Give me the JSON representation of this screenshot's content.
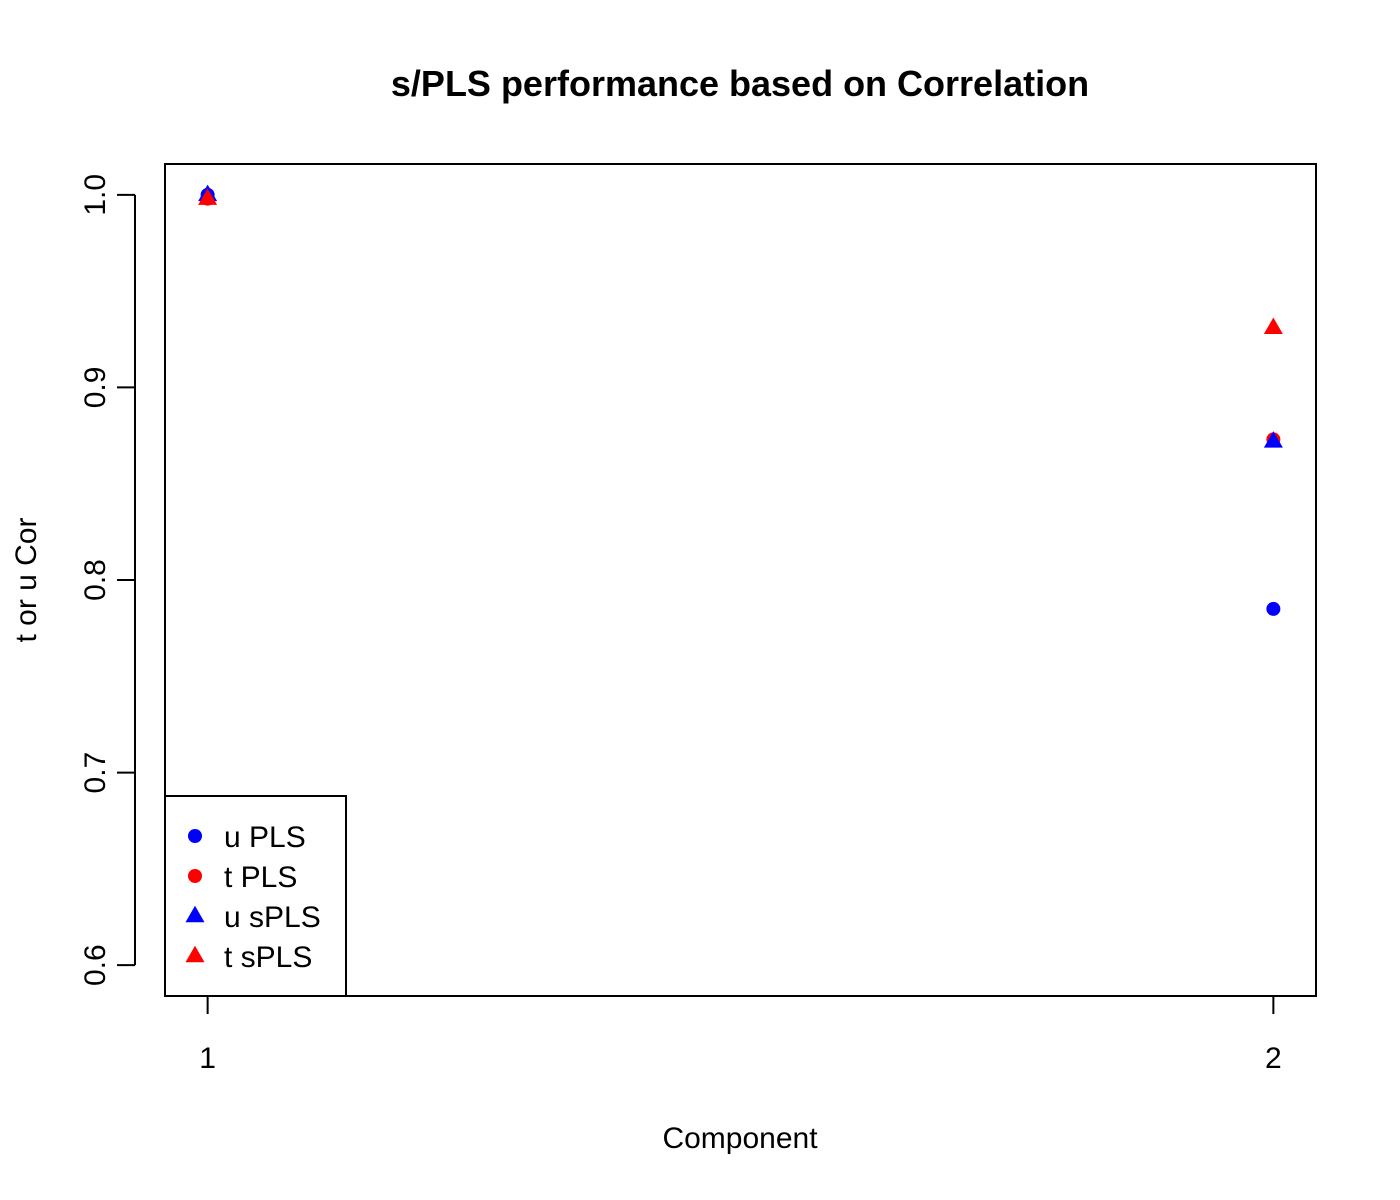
{
  "chart_data": {
    "type": "scatter",
    "title": "s/PLS performance based on Correlation",
    "xlabel": "Component",
    "ylabel": "t or u Cor",
    "x": [
      1,
      2
    ],
    "xticks": [
      1,
      2
    ],
    "xtick_labels": [
      "1",
      "2"
    ],
    "yticks": [
      0.6,
      0.7,
      0.8,
      0.9,
      1.0
    ],
    "ytick_labels": [
      "0.6",
      "0.7",
      "0.8",
      "0.9",
      "1.0"
    ],
    "xlim": [
      0.96,
      2.04
    ],
    "ylim": [
      0.584,
      1.016
    ],
    "grid": false,
    "legend_position": "bottom-left",
    "series": [
      {
        "name": "u PLS",
        "marker": "circle",
        "color": "#0000ff",
        "values": [
          1.0,
          0.785
        ]
      },
      {
        "name": "t PLS",
        "marker": "circle",
        "color": "#ff0000",
        "values": [
          0.998,
          0.873
        ]
      },
      {
        "name": "u sPLS",
        "marker": "triangle",
        "color": "#0000ff",
        "values": [
          1.0,
          0.872
        ]
      },
      {
        "name": "t sPLS",
        "marker": "triangle",
        "color": "#ff0000",
        "values": [
          0.998,
          0.931
        ]
      }
    ]
  }
}
